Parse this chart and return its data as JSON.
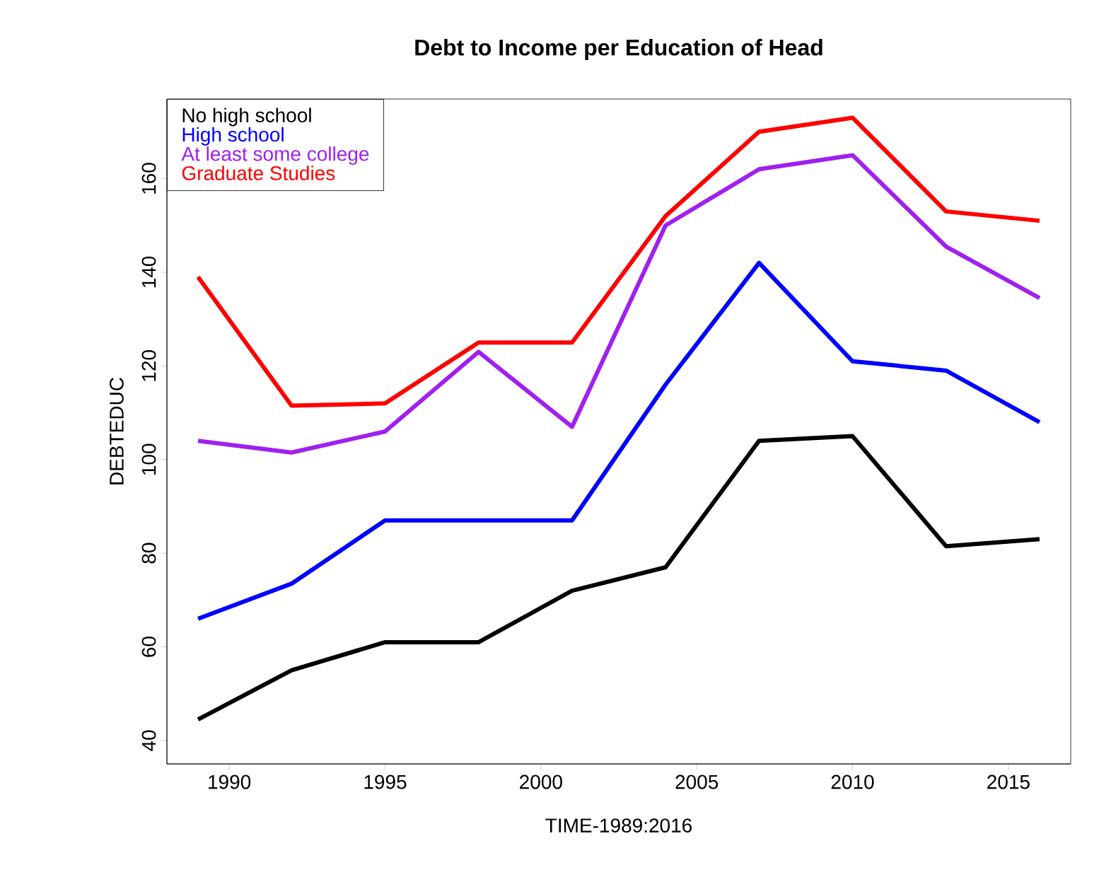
{
  "chart_data": {
    "type": "line",
    "title": "Debt to Income per Education of Head",
    "xlabel": "TIME-1989:2016",
    "ylabel": "DEBTEDUC",
    "x": [
      1989,
      1992,
      1995,
      1998,
      2001,
      2004,
      2007,
      2010,
      2013,
      2016
    ],
    "series": [
      {
        "name": "No high school",
        "color": "#000000",
        "values": [
          44.5,
          55,
          61,
          61,
          72,
          77,
          104,
          105,
          81.5,
          83
        ]
      },
      {
        "name": "High school",
        "color": "#0000ff",
        "values": [
          66,
          73.5,
          87,
          87,
          87,
          116,
          142,
          121,
          119,
          108
        ]
      },
      {
        "name": "At least some college",
        "color": "#a020f0",
        "values": [
          104,
          101.5,
          106,
          123,
          107,
          150,
          162,
          165,
          145.5,
          134.5
        ]
      },
      {
        "name": "Graduate Studies",
        "color": "#ff0000",
        "values": [
          139,
          111.5,
          112,
          125,
          125,
          152,
          170,
          173,
          153,
          151
        ]
      }
    ],
    "xlim": [
      1988,
      2017
    ],
    "ylim": [
      35,
      177
    ],
    "xticks": [
      1990,
      1995,
      2000,
      2005,
      2010,
      2015
    ],
    "yticks": [
      40,
      60,
      80,
      100,
      120,
      140,
      160
    ],
    "legend": "top left",
    "grid": false,
    "marker": "none",
    "line_style": "solid"
  }
}
